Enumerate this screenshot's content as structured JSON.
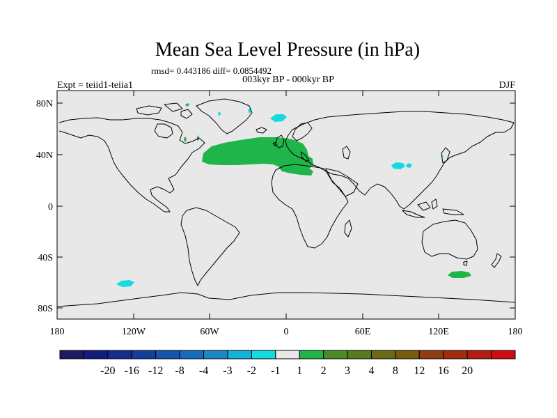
{
  "title": "Mean Sea Level Pressure (in hPa)",
  "stats": "rmsd= 0.443186 diff= 0.0854492",
  "subtitle": "003kyr BP - 000kyr BP",
  "left_label": "Expt = teiid1-teiia1",
  "right_label": "DJF",
  "lat_ticks": [
    "80N",
    "40N",
    "0",
    "40S",
    "80S"
  ],
  "lon_ticks": [
    "180",
    "120W",
    "60W",
    "0",
    "60E",
    "120E",
    "180"
  ],
  "colorbar": {
    "colors": [
      "#1f1a5e",
      "#141a7e",
      "#142e8e",
      "#163d9d",
      "#1555ae",
      "#166bbd",
      "#1a87c9",
      "#15b2dc",
      "#14dbe1",
      "#e8e8e8",
      "#1fb54a",
      "#4a8c28",
      "#577a1b",
      "#6a6a12",
      "#7a5a0f",
      "#8e3e10",
      "#a22a10",
      "#b51b12",
      "#cf0d10"
    ],
    "labels": [
      "-20",
      "-16",
      "-12",
      "-8",
      "-4",
      "-3",
      "-2",
      "-1",
      "1",
      "2",
      "3",
      "4",
      "8",
      "12",
      "16",
      "20"
    ]
  },
  "colors": {
    "ocean": "#e8e8e8",
    "coast": "#000000",
    "positive_anomaly": "#1fb54a",
    "negative_anomaly": "#14dbe1"
  }
}
